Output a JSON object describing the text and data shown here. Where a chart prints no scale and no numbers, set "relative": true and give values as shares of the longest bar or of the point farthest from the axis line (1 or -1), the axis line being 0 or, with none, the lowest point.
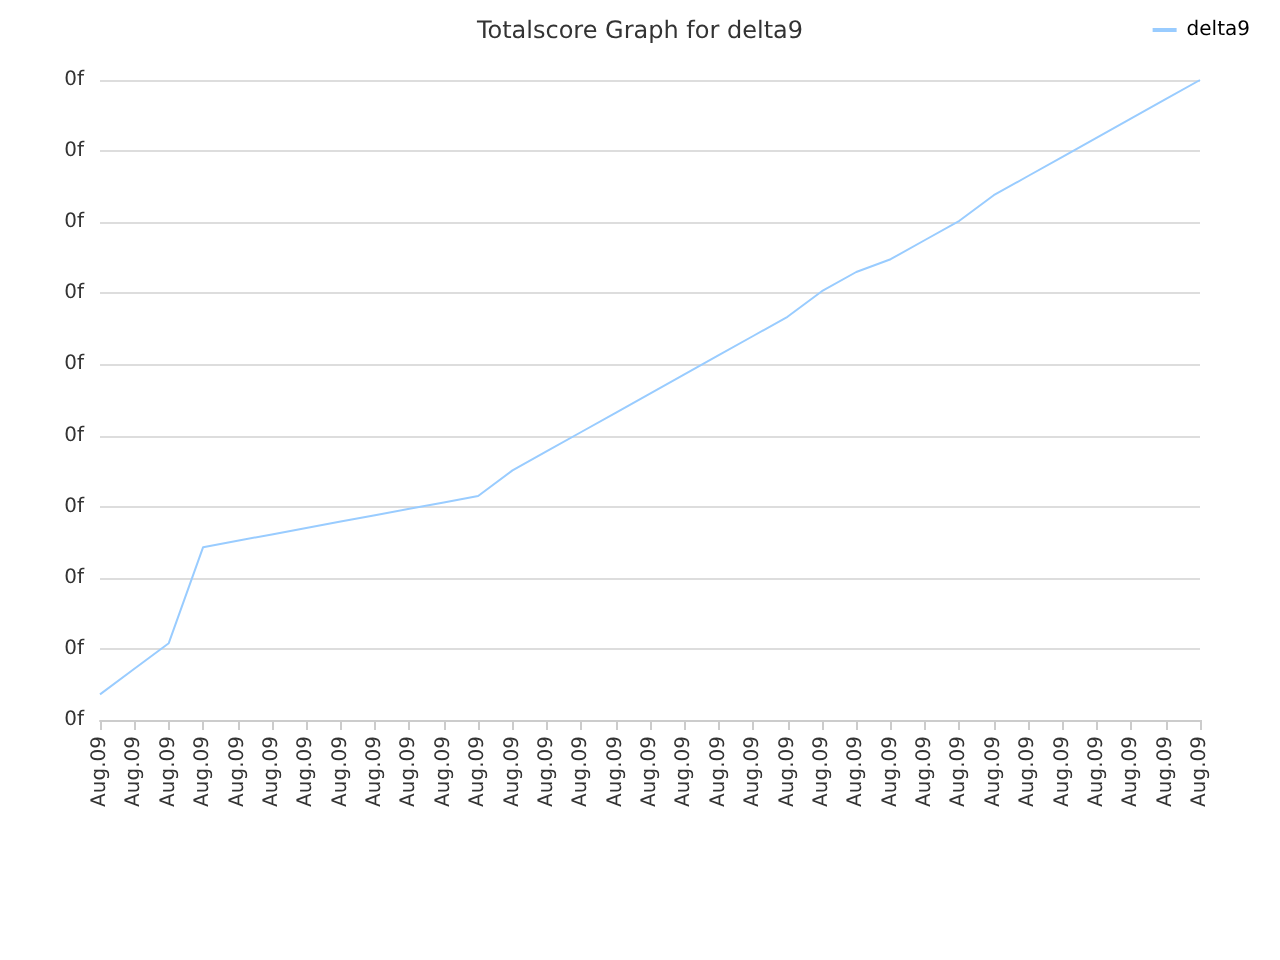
{
  "chart_data": {
    "type": "line",
    "title": "Totalscore Graph for delta9",
    "relative": true,
    "categories": [
      "Aug.09",
      "Aug.09",
      "Aug.09",
      "Aug.09",
      "Aug.09",
      "Aug.09",
      "Aug.09",
      "Aug.09",
      "Aug.09",
      "Aug.09",
      "Aug.09",
      "Aug.09",
      "Aug.09",
      "Aug.09",
      "Aug.09",
      "Aug.09",
      "Aug.09",
      "Aug.09",
      "Aug.09",
      "Aug.09",
      "Aug.09",
      "Aug.09",
      "Aug.09",
      "Aug.09",
      "Aug.09",
      "Aug.09",
      "Aug.09",
      "Aug.09",
      "Aug.09",
      "Aug.09",
      "Aug.09",
      "Aug.09",
      "Aug.09"
    ],
    "series": [
      {
        "name": "delta9",
        "color": "#99ccff",
        "values": [
          0.04,
          0.08,
          0.12,
          0.27,
          0.28,
          0.29,
          0.3,
          0.31,
          0.32,
          0.33,
          0.34,
          0.35,
          0.39,
          0.42,
          0.45,
          0.48,
          0.51,
          0.54,
          0.57,
          0.6,
          0.63,
          0.67,
          0.7,
          0.72,
          0.75,
          0.78,
          0.82,
          0.85,
          0.88,
          0.91,
          0.94,
          0.97,
          1
        ]
      }
    ],
    "annotations": [
      "0f",
      "0f",
      "0f",
      "0f",
      "0f",
      "0f",
      "0f",
      "0f",
      "0f",
      "0f"
    ],
    "grid": "y",
    "legend": "top right",
    "marker": "none",
    "line_style": "solid"
  }
}
